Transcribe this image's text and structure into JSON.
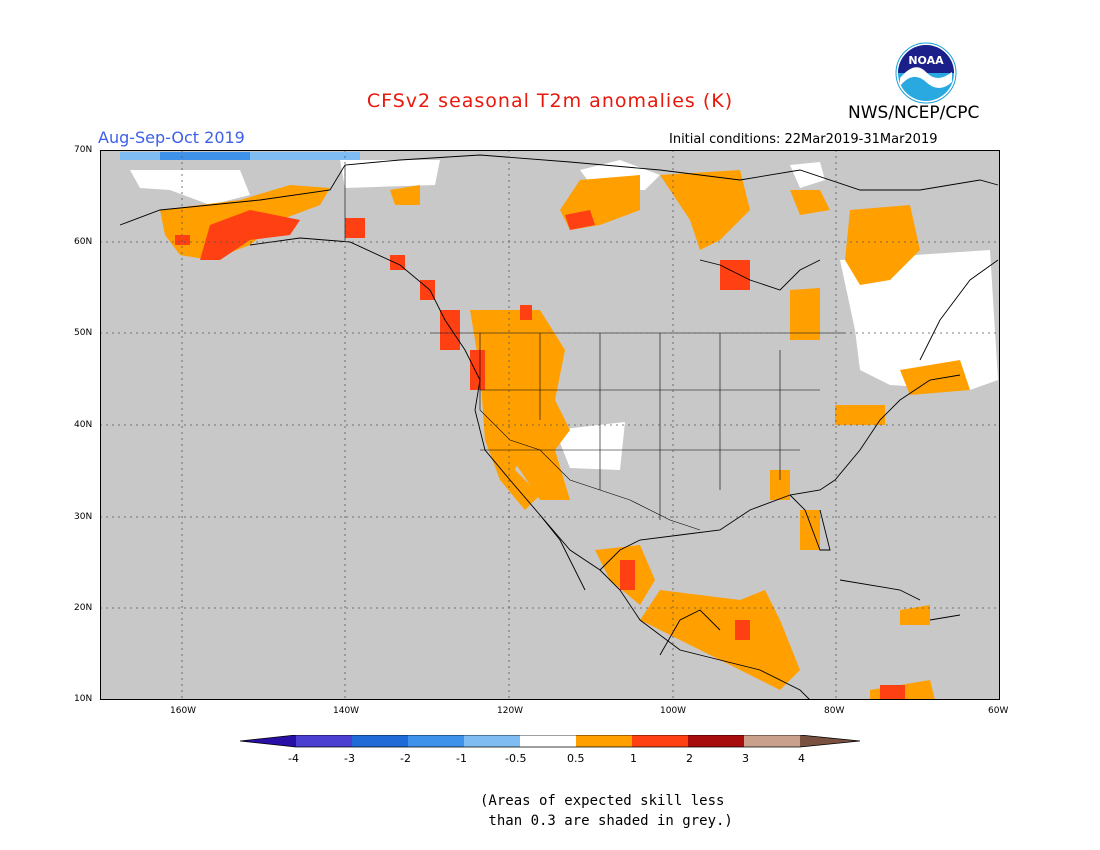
{
  "title": "CFSv2 seasonal T2m anomalies (K)",
  "title_color": "#e8180c",
  "agency": "NWS/NCEP/CPC",
  "logo_text": "NOAA",
  "period": "Aug-Sep-Oct 2019",
  "period_color": "#3c5fe8",
  "initial_conditions": "Initial conditions: 22Mar2019-31Mar2019",
  "map": {
    "lat_labels": [
      "70N",
      "60N",
      "50N",
      "40N",
      "30N",
      "20N",
      "10N"
    ],
    "lon_labels": [
      "160W",
      "140W",
      "120W",
      "100W",
      "80W",
      "60W"
    ],
    "ocean_color": "#c8c8c8",
    "land_masked_color": "#c8c8c8"
  },
  "colorbar": {
    "ticks": [
      "-4",
      "-3",
      "-2",
      "-1",
      "-0.5",
      "0.5",
      "1",
      "2",
      "3",
      "4"
    ],
    "colors": [
      "#2a0fa6",
      "#4a3fd0",
      "#1f6ad6",
      "#3f92ea",
      "#7ebcf2",
      "#ffffff",
      "#ff9f00",
      "#ff4012",
      "#a80d0d",
      "#c8a08c",
      "#7a5040"
    ]
  },
  "note_line1": "(Areas of expected skill less",
  "note_line2": " than 0.3 are shaded in grey.)"
}
